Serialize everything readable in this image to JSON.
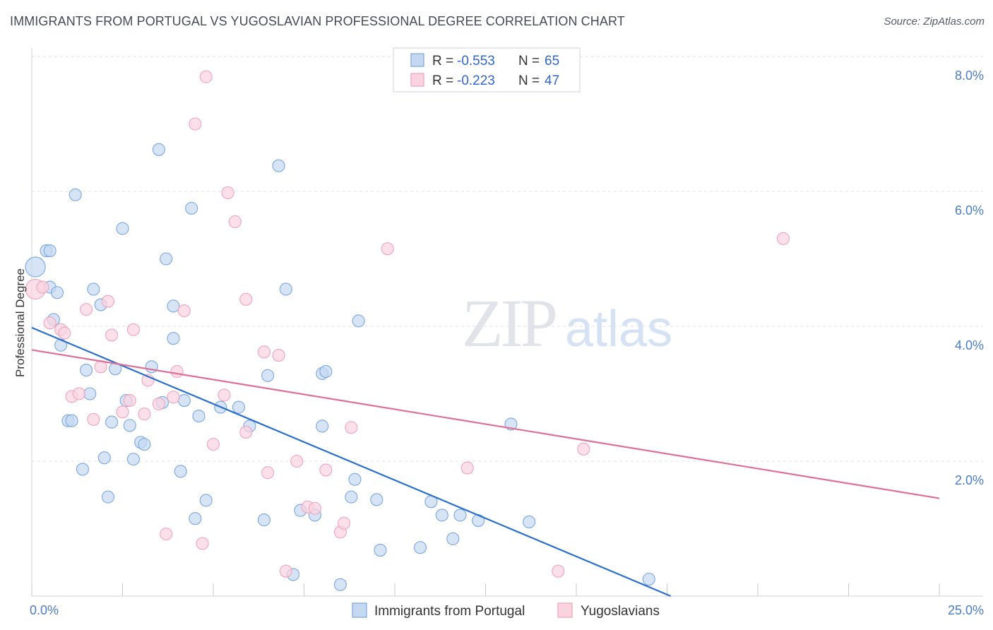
{
  "title": "IMMIGRANTS FROM PORTUGAL VS YUGOSLAVIAN PROFESSIONAL DEGREE CORRELATION CHART",
  "source": "Source: ZipAtlas.com",
  "watermark": {
    "zip": "ZIP",
    "atlas": "atlas"
  },
  "chart_data": {
    "type": "scatter",
    "title": "IMMIGRANTS FROM PORTUGAL VS YUGOSLAVIAN PROFESSIONAL DEGREE CORRELATION CHART",
    "xlabel": "",
    "ylabel": "Professional Degree",
    "xlim": [
      0,
      25
    ],
    "ylim": [
      0,
      8.0
    ],
    "x_ticks": [
      0,
      2.5,
      5,
      7.5,
      10,
      12.5,
      15,
      17.5,
      20,
      22.5,
      25
    ],
    "x_tick_labels": [
      {
        "value": 0,
        "label": "0.0%"
      },
      {
        "value": 25,
        "label": "25.0%"
      }
    ],
    "y_ticks": [
      {
        "value": 2,
        "label": "2.0%"
      },
      {
        "value": 4,
        "label": "4.0%"
      },
      {
        "value": 6,
        "label": "6.0%"
      },
      {
        "value": 8,
        "label": "8.0%"
      }
    ],
    "grid": true,
    "legend_position": "top-center",
    "series": [
      {
        "name": "Immigrants from Portugal",
        "color": "#7aa7e0",
        "fill": "#c4d8f2",
        "line_color": "#2a6fd0",
        "legend_r_label": "R = ",
        "legend_r": "-0.553",
        "legend_n_label": "N = ",
        "legend_n": "65",
        "trend": {
          "x": [
            0,
            17.6
          ],
          "y": [
            3.98,
            0.0
          ]
        },
        "points": [
          [
            0.1,
            4.88,
            14
          ],
          [
            0.4,
            5.12,
            8
          ],
          [
            0.5,
            5.12,
            8
          ],
          [
            0.5,
            4.58,
            8
          ],
          [
            0.7,
            4.5,
            8
          ],
          [
            0.6,
            4.1,
            8
          ],
          [
            0.8,
            3.72,
            8
          ],
          [
            1.2,
            5.95,
            8
          ],
          [
            1.5,
            3.35,
            8
          ],
          [
            1.6,
            3.0,
            8
          ],
          [
            1.0,
            2.6,
            8
          ],
          [
            1.1,
            2.6,
            8
          ],
          [
            1.4,
            1.88,
            8
          ],
          [
            1.7,
            4.55,
            8
          ],
          [
            1.9,
            4.32,
            8
          ],
          [
            2.3,
            3.37,
            8
          ],
          [
            2.5,
            5.45,
            8
          ],
          [
            2.0,
            2.05,
            8
          ],
          [
            2.1,
            1.47,
            8
          ],
          [
            2.2,
            2.58,
            8
          ],
          [
            2.6,
            2.9,
            8
          ],
          [
            2.7,
            2.53,
            8
          ],
          [
            2.8,
            2.03,
            8
          ],
          [
            3.0,
            2.28,
            8
          ],
          [
            3.1,
            2.25,
            8
          ],
          [
            3.3,
            3.4,
            8
          ],
          [
            3.5,
            6.62,
            8
          ],
          [
            3.6,
            2.87,
            8
          ],
          [
            3.7,
            5.0,
            8
          ],
          [
            3.9,
            4.3,
            8
          ],
          [
            3.9,
            3.82,
            8
          ],
          [
            4.1,
            1.85,
            8
          ],
          [
            4.2,
            2.9,
            8
          ],
          [
            4.4,
            5.75,
            8
          ],
          [
            4.6,
            2.67,
            8
          ],
          [
            4.5,
            1.15,
            8
          ],
          [
            4.8,
            1.42,
            8
          ],
          [
            5.2,
            2.8,
            8
          ],
          [
            5.7,
            2.8,
            8
          ],
          [
            6.0,
            2.52,
            8
          ],
          [
            6.5,
            3.27,
            8
          ],
          [
            6.4,
            1.13,
            8
          ],
          [
            6.8,
            6.38,
            8
          ],
          [
            7.0,
            4.55,
            8
          ],
          [
            7.2,
            0.32,
            8
          ],
          [
            7.4,
            1.27,
            8
          ],
          [
            7.8,
            1.2,
            8
          ],
          [
            8.0,
            2.52,
            8
          ],
          [
            8.0,
            3.3,
            8
          ],
          [
            8.1,
            3.33,
            8
          ],
          [
            8.5,
            0.17,
            8
          ],
          [
            8.8,
            1.47,
            8
          ],
          [
            8.9,
            1.73,
            8
          ],
          [
            9.0,
            4.08,
            8
          ],
          [
            9.5,
            1.43,
            8
          ],
          [
            9.6,
            0.68,
            8
          ],
          [
            10.7,
            0.72,
            8
          ],
          [
            11.0,
            1.4,
            8
          ],
          [
            11.3,
            1.2,
            8
          ],
          [
            11.6,
            0.85,
            8
          ],
          [
            11.8,
            1.2,
            8
          ],
          [
            12.3,
            1.12,
            8
          ],
          [
            13.2,
            2.55,
            8
          ],
          [
            13.7,
            1.1,
            8
          ],
          [
            17.0,
            0.25,
            8
          ]
        ]
      },
      {
        "name": "Yugoslavians",
        "color": "#f0a3bd",
        "fill": "#fbd3df",
        "line_color": "#e06f98",
        "legend_r_label": "R = ",
        "legend_r": "-0.223",
        "legend_n_label": "N = ",
        "legend_n": "47",
        "trend": {
          "x": [
            0,
            25
          ],
          "y": [
            3.65,
            1.45
          ]
        },
        "points": [
          [
            0.1,
            4.55,
            14
          ],
          [
            0.3,
            4.58,
            8
          ],
          [
            0.5,
            4.05,
            8
          ],
          [
            0.8,
            3.95,
            8
          ],
          [
            0.9,
            3.9,
            8
          ],
          [
            1.1,
            2.96,
            8
          ],
          [
            1.3,
            3.0,
            8
          ],
          [
            1.5,
            4.25,
            8
          ],
          [
            1.7,
            2.62,
            8
          ],
          [
            1.9,
            3.4,
            8
          ],
          [
            2.1,
            4.37,
            8
          ],
          [
            2.2,
            3.87,
            8
          ],
          [
            2.5,
            2.73,
            8
          ],
          [
            2.7,
            2.9,
            8
          ],
          [
            2.8,
            3.95,
            8
          ],
          [
            3.1,
            2.7,
            8
          ],
          [
            3.2,
            3.2,
            8
          ],
          [
            3.5,
            2.85,
            8
          ],
          [
            3.7,
            0.92,
            8
          ],
          [
            3.9,
            2.95,
            8
          ],
          [
            4.0,
            3.33,
            8
          ],
          [
            4.2,
            4.23,
            8
          ],
          [
            4.5,
            7.0,
            8
          ],
          [
            4.7,
            0.78,
            8
          ],
          [
            4.8,
            7.7,
            8
          ],
          [
            5.0,
            2.25,
            8
          ],
          [
            5.3,
            2.98,
            8
          ],
          [
            5.4,
            5.98,
            8
          ],
          [
            5.6,
            5.55,
            8
          ],
          [
            5.9,
            2.43,
            8
          ],
          [
            5.9,
            4.4,
            8
          ],
          [
            6.4,
            3.62,
            8
          ],
          [
            6.5,
            1.83,
            8
          ],
          [
            6.8,
            3.57,
            8
          ],
          [
            7.0,
            0.37,
            8
          ],
          [
            7.3,
            2.0,
            8
          ],
          [
            7.6,
            1.32,
            8
          ],
          [
            7.8,
            1.3,
            8
          ],
          [
            8.1,
            1.87,
            8
          ],
          [
            8.5,
            0.95,
            8
          ],
          [
            8.6,
            1.08,
            8
          ],
          [
            8.8,
            2.5,
            8
          ],
          [
            9.8,
            5.15,
            8
          ],
          [
            12.0,
            1.9,
            8
          ],
          [
            14.5,
            0.37,
            8
          ],
          [
            15.2,
            2.18,
            8
          ],
          [
            20.7,
            5.3,
            8
          ]
        ]
      }
    ]
  }
}
